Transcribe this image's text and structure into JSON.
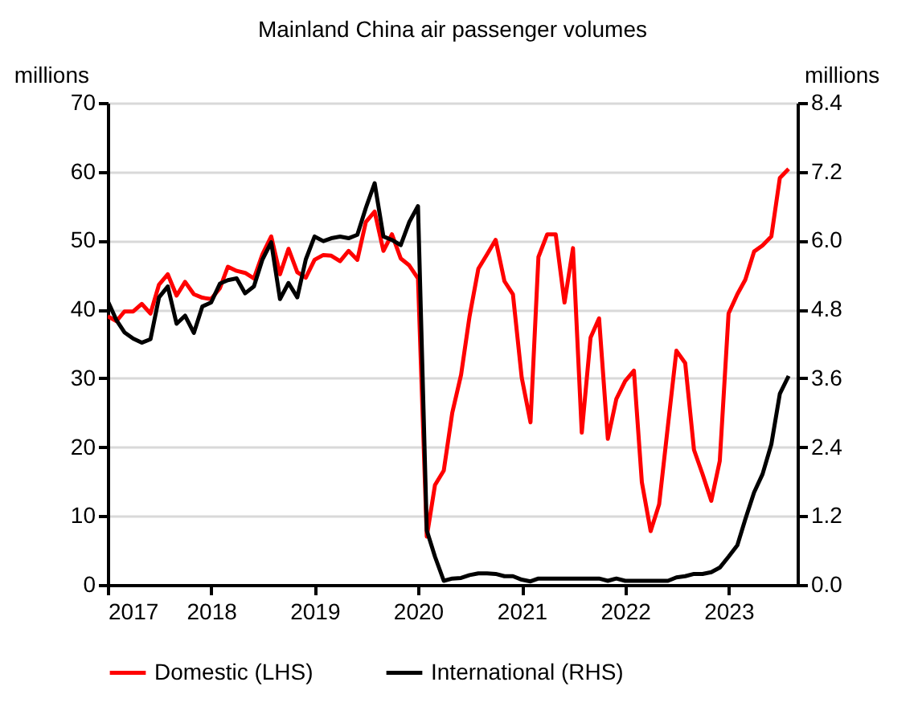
{
  "chart_data": {
    "type": "line",
    "title": "Mainland China air passenger volumes",
    "ylabel": "millions",
    "y2label": "millions",
    "x": [
      "2017-01",
      "2017-02",
      "2017-03",
      "2017-04",
      "2017-05",
      "2017-06",
      "2017-07",
      "2017-08",
      "2017-09",
      "2017-10",
      "2017-11",
      "2017-12",
      "2018-01",
      "2018-02",
      "2018-03",
      "2018-04",
      "2018-05",
      "2018-06",
      "2018-07",
      "2018-08",
      "2018-09",
      "2018-10",
      "2018-11",
      "2018-12",
      "2019-01",
      "2019-02",
      "2019-03",
      "2019-04",
      "2019-05",
      "2019-06",
      "2019-07",
      "2019-08",
      "2019-09",
      "2019-10",
      "2019-11",
      "2019-12",
      "2020-01",
      "2020-02",
      "2020-03",
      "2020-04",
      "2020-05",
      "2020-06",
      "2020-07",
      "2020-08",
      "2020-09",
      "2020-10",
      "2020-11",
      "2020-12",
      "2021-01",
      "2021-02",
      "2021-03",
      "2021-04",
      "2021-05",
      "2021-06",
      "2021-07",
      "2021-08",
      "2021-09",
      "2021-10",
      "2021-11",
      "2021-12",
      "2022-01",
      "2022-02",
      "2022-03",
      "2022-04",
      "2022-05",
      "2022-06",
      "2022-07",
      "2022-08",
      "2022-09",
      "2022-10",
      "2022-11",
      "2022-12",
      "2023-01",
      "2023-02",
      "2023-03",
      "2023-04",
      "2023-05",
      "2023-06",
      "2023-07",
      "2023-08"
    ],
    "series": [
      {
        "name": "Domestic (LHS)",
        "color": "#ff0000",
        "values": [
          39.0,
          38.3,
          39.7,
          39.7,
          40.8,
          39.4,
          43.6,
          45.1,
          42.0,
          44.0,
          42.2,
          41.7,
          41.5,
          43.1,
          46.2,
          45.6,
          45.3,
          44.5,
          48.0,
          50.6,
          45.1,
          48.8,
          45.4,
          44.6,
          47.2,
          47.9,
          47.8,
          47.0,
          48.5,
          47.2,
          52.7,
          54.2,
          48.5,
          50.9,
          47.4,
          46.4,
          44.5,
          7.0,
          14.5,
          16.6,
          25.0,
          30.5,
          39.0,
          45.9,
          48.0,
          50.1,
          44.1,
          42.2,
          30.1,
          23.6,
          47.6,
          50.9,
          50.9,
          41.0,
          48.9,
          22.1,
          35.9,
          38.7,
          21.2,
          27.0,
          29.6,
          31.1,
          14.9,
          7.8,
          11.7,
          23.1,
          34.0,
          32.2,
          19.6,
          16.1,
          12.2,
          18.0,
          39.4,
          42.2,
          44.3,
          48.4,
          49.3,
          50.6,
          59.1,
          60.4
        ]
      },
      {
        "name": "International (RHS)",
        "color": "#000000",
        "axis": "y2",
        "values": [
          4.95,
          4.61,
          4.4,
          4.29,
          4.22,
          4.28,
          5.01,
          5.2,
          4.55,
          4.69,
          4.39,
          4.85,
          4.92,
          5.25,
          5.31,
          5.34,
          5.08,
          5.2,
          5.67,
          5.97,
          4.98,
          5.26,
          5.01,
          5.67,
          6.07,
          5.99,
          6.04,
          6.07,
          6.04,
          6.1,
          6.57,
          7.0,
          6.07,
          6.01,
          5.92,
          6.32,
          6.6,
          0.95,
          0.49,
          0.07,
          0.11,
          0.12,
          0.17,
          0.2,
          0.2,
          0.19,
          0.15,
          0.15,
          0.09,
          0.06,
          0.11,
          0.11,
          0.11,
          0.11,
          0.11,
          0.11,
          0.11,
          0.11,
          0.07,
          0.11,
          0.07,
          0.07,
          0.07,
          0.07,
          0.07,
          0.07,
          0.13,
          0.15,
          0.19,
          0.19,
          0.22,
          0.3,
          0.49,
          0.69,
          1.14,
          1.61,
          1.93,
          2.45,
          3.33,
          3.64
        ]
      }
    ],
    "xlim": [
      "2017-01",
      "2023-09"
    ],
    "xticks": [
      "2017",
      "2018",
      "2019",
      "2020",
      "2021",
      "2022",
      "2023"
    ],
    "ylim": [
      0,
      70
    ],
    "yticks": [
      0,
      10,
      20,
      30,
      40,
      50,
      60,
      70
    ],
    "y2lim": [
      0,
      8.4
    ],
    "y2ticks": [
      {
        "value": 0,
        "label": "0.0"
      },
      {
        "value": 1.2,
        "label": "1.2"
      },
      {
        "value": 2.4,
        "label": "2.4"
      },
      {
        "value": 3.6,
        "label": "3.6"
      },
      {
        "value": 4.8,
        "label": "4.8"
      },
      {
        "value": 6,
        "label": "6.0"
      },
      {
        "value": 7.2,
        "label": "7.2"
      },
      {
        "value": 8.4,
        "label": "8.4"
      }
    ],
    "grid": "y",
    "legend": "bottom",
    "line_style": "solid"
  }
}
